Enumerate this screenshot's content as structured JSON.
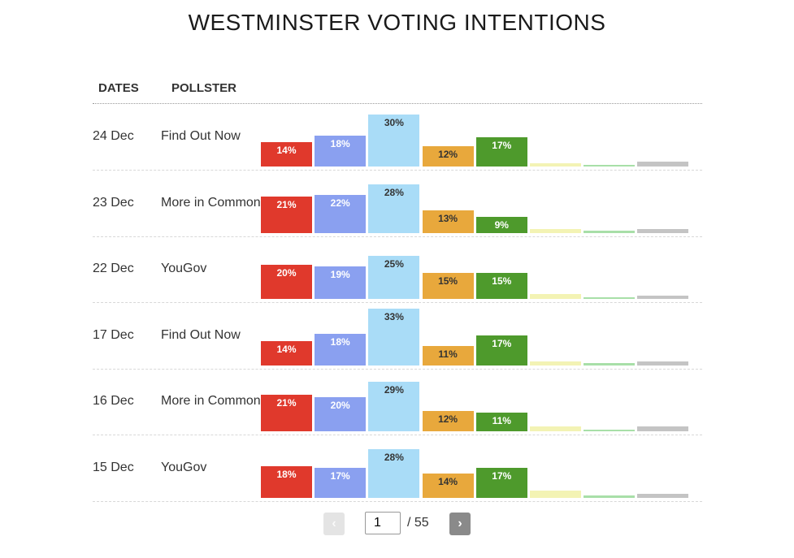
{
  "title": "WESTMINSTER VOTING INTENTIONS",
  "headers": {
    "dates": "DATES",
    "pollster": "POLLSTER"
  },
  "parties": [
    {
      "color": "#e0392c",
      "label_color": "#ffffff"
    },
    {
      "color": "#8aa0f0",
      "label_color": "#ffffff"
    },
    {
      "color": "#a9dcf7",
      "label_color": "#333333"
    },
    {
      "color": "#e8a83c",
      "label_color": "#333333"
    },
    {
      "color": "#4e9a2c",
      "label_color": "#ffffff"
    },
    {
      "color": "#f3f3b4",
      "label_color": "#333333"
    },
    {
      "color": "#a8dfa8",
      "label_color": "#333333"
    },
    {
      "color": "#c4c4c4",
      "label_color": "#333333"
    }
  ],
  "chart_data": {
    "type": "bar",
    "title": "WESTMINSTER VOTING INTENTIONS",
    "ylim": [
      0,
      33
    ],
    "rows": [
      {
        "date": "24 Dec",
        "pollster": "Find Out Now",
        "values": [
          14,
          18,
          30,
          12,
          17,
          2,
          1,
          3
        ],
        "labels": [
          "14%",
          "18%",
          "30%",
          "12%",
          "17%",
          "",
          "",
          ""
        ]
      },
      {
        "date": "23 Dec",
        "pollster": "More in Common",
        "values": [
          21,
          22,
          28,
          13,
          9,
          2,
          1,
          2
        ],
        "labels": [
          "21%",
          "22%",
          "28%",
          "13%",
          "9%",
          "",
          "",
          ""
        ]
      },
      {
        "date": "22 Dec",
        "pollster": "YouGov",
        "values": [
          20,
          19,
          25,
          15,
          15,
          3,
          1,
          2
        ],
        "labels": [
          "20%",
          "19%",
          "25%",
          "15%",
          "15%",
          "",
          "",
          ""
        ]
      },
      {
        "date": "17 Dec",
        "pollster": "Find Out Now",
        "values": [
          14,
          18,
          33,
          11,
          17,
          2,
          1,
          2
        ],
        "labels": [
          "14%",
          "18%",
          "33%",
          "11%",
          "17%",
          "",
          "",
          ""
        ]
      },
      {
        "date": "16 Dec",
        "pollster": "More in Common",
        "values": [
          21,
          20,
          29,
          12,
          11,
          3,
          1,
          3
        ],
        "labels": [
          "21%",
          "20%",
          "29%",
          "12%",
          "11%",
          "",
          "",
          ""
        ]
      },
      {
        "date": "15 Dec",
        "pollster": "YouGov",
        "values": [
          18,
          17,
          28,
          14,
          17,
          4,
          1,
          2
        ],
        "labels": [
          "18%",
          "17%",
          "28%",
          "14%",
          "17%",
          "",
          "",
          ""
        ]
      }
    ]
  },
  "pagination": {
    "prev": "‹",
    "next": "›",
    "page": "1",
    "total": "/ 55"
  }
}
